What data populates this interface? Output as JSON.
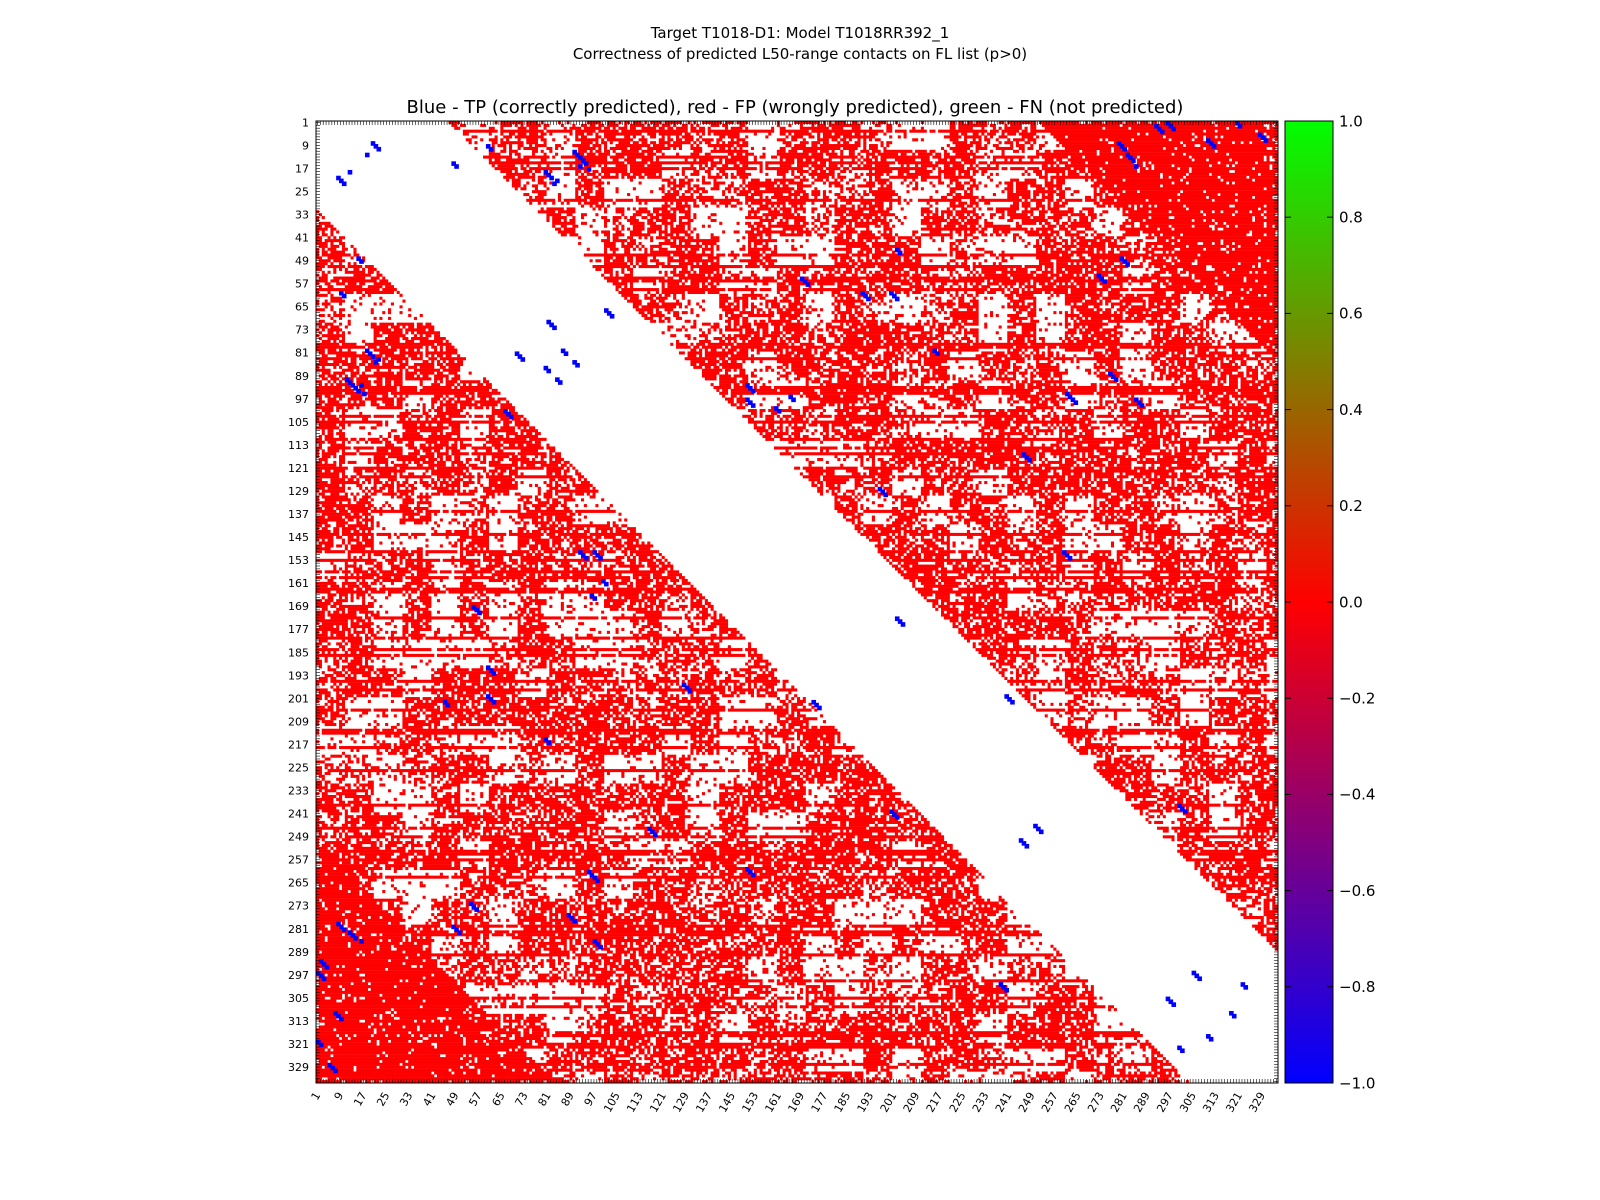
{
  "chart_data": {
    "type": "heatmap",
    "title": "Target T1018-D1: Model T1018RR392_1",
    "subtitle": "Correctness of predicted L50-range contacts on FL list (p>0)",
    "plot_title": "Blue - TP (correctly predicted), red - FP (wrongly predicted), green - FN (not predicted)",
    "xlabel": "",
    "ylabel": "",
    "residue_count": 334,
    "x_ticks": [
      1,
      9,
      17,
      25,
      33,
      41,
      49,
      57,
      65,
      73,
      81,
      89,
      97,
      105,
      113,
      121,
      129,
      137,
      145,
      153,
      161,
      169,
      177,
      185,
      193,
      201,
      209,
      217,
      225,
      233,
      241,
      249,
      257,
      265,
      273,
      281,
      289,
      297,
      305,
      313,
      321,
      329
    ],
    "y_ticks": [
      1,
      9,
      17,
      25,
      33,
      41,
      49,
      57,
      65,
      73,
      81,
      89,
      97,
      105,
      113,
      121,
      129,
      137,
      145,
      153,
      161,
      169,
      177,
      185,
      193,
      201,
      209,
      217,
      225,
      233,
      241,
      249,
      257,
      265,
      273,
      281,
      289,
      297,
      305,
      313,
      321,
      329
    ],
    "colorbar": {
      "min": -1.0,
      "max": 1.0,
      "ticks": [
        "1.0",
        "0.8",
        "0.6",
        "0.4",
        "0.2",
        "0.0",
        "−0.2",
        "−0.4",
        "−0.6",
        "−0.8",
        "−1.0"
      ],
      "colors": [
        "#00ff00",
        "#ff0000",
        "#0000ff"
      ]
    },
    "legend": {
      "tp": "Blue - TP (correctly predicted)",
      "fp": "red - FP (wrongly predicted)",
      "fn": "green - FN (not predicted)"
    },
    "colors": {
      "tp": "#0000ff",
      "fp": "#ff0000",
      "fn": "#00ff00"
    },
    "tp_contacts": [
      [
        8,
        20
      ],
      [
        9,
        21
      ],
      [
        10,
        22
      ],
      [
        9,
        60
      ],
      [
        10,
        61
      ],
      [
        11,
        90
      ],
      [
        12,
        91
      ],
      [
        13,
        92
      ],
      [
        14,
        93
      ],
      [
        15,
        94
      ],
      [
        16,
        92
      ],
      [
        17,
        95
      ],
      [
        12,
        18
      ],
      [
        18,
        80
      ],
      [
        19,
        81
      ],
      [
        20,
        82
      ],
      [
        21,
        84
      ],
      [
        22,
        83
      ],
      [
        15,
        48
      ],
      [
        16,
        49
      ],
      [
        2,
        292
      ],
      [
        3,
        293
      ],
      [
        4,
        294
      ],
      [
        8,
        279
      ],
      [
        9,
        280
      ],
      [
        10,
        281
      ],
      [
        12,
        282
      ],
      [
        13,
        283
      ],
      [
        14,
        284
      ],
      [
        16,
        285
      ],
      [
        48,
        280
      ],
      [
        49,
        281
      ],
      [
        50,
        282
      ],
      [
        54,
        272
      ],
      [
        55,
        273
      ],
      [
        56,
        274
      ],
      [
        60,
        190
      ],
      [
        61,
        191
      ],
      [
        62,
        192
      ],
      [
        88,
        276
      ],
      [
        89,
        277
      ],
      [
        90,
        278
      ],
      [
        95,
        261
      ],
      [
        96,
        262
      ],
      [
        97,
        263
      ],
      [
        98,
        264
      ],
      [
        60,
        200
      ],
      [
        61,
        201
      ],
      [
        62,
        202
      ],
      [
        80,
        215
      ],
      [
        81,
        216
      ],
      [
        97,
        150
      ],
      [
        98,
        151
      ],
      [
        99,
        152
      ],
      [
        100,
        160
      ],
      [
        101,
        161
      ],
      [
        150,
        260
      ],
      [
        151,
        261
      ],
      [
        152,
        262
      ],
      [
        200,
        240
      ],
      [
        201,
        241
      ],
      [
        202,
        242
      ],
      [
        245,
        250
      ],
      [
        246,
        251
      ],
      [
        247,
        252
      ],
      [
        66,
        101
      ],
      [
        67,
        102
      ],
      [
        68,
        103
      ],
      [
        70,
        81
      ],
      [
        71,
        82
      ],
      [
        72,
        83
      ],
      [
        80,
        86
      ],
      [
        81,
        87
      ],
      [
        84,
        90
      ],
      [
        85,
        91
      ],
      [
        55,
        169
      ],
      [
        56,
        170
      ],
      [
        57,
        171
      ],
      [
        45,
        202
      ],
      [
        46,
        203
      ],
      [
        128,
        196
      ],
      [
        129,
        197
      ],
      [
        130,
        198
      ],
      [
        173,
        202
      ],
      [
        174,
        203
      ],
      [
        175,
        204
      ],
      [
        238,
        300
      ],
      [
        239,
        301
      ],
      [
        240,
        302
      ],
      [
        296,
        305
      ],
      [
        297,
        306
      ],
      [
        298,
        307
      ],
      [
        1,
        296
      ],
      [
        2,
        297
      ],
      [
        3,
        298
      ],
      [
        7,
        310
      ],
      [
        8,
        311
      ],
      [
        9,
        312
      ],
      [
        1,
        320
      ],
      [
        2,
        321
      ],
      [
        5,
        328
      ],
      [
        6,
        329
      ],
      [
        7,
        330
      ],
      [
        92,
        150
      ],
      [
        93,
        151
      ],
      [
        94,
        152
      ],
      [
        96,
        165
      ],
      [
        97,
        166
      ],
      [
        116,
        246
      ],
      [
        117,
        247
      ],
      [
        118,
        248
      ],
      [
        97,
        285
      ],
      [
        98,
        286
      ],
      [
        99,
        287
      ],
      [
        300,
        322
      ],
      [
        301,
        323
      ],
      [
        310,
        318
      ],
      [
        311,
        319
      ]
    ]
  }
}
